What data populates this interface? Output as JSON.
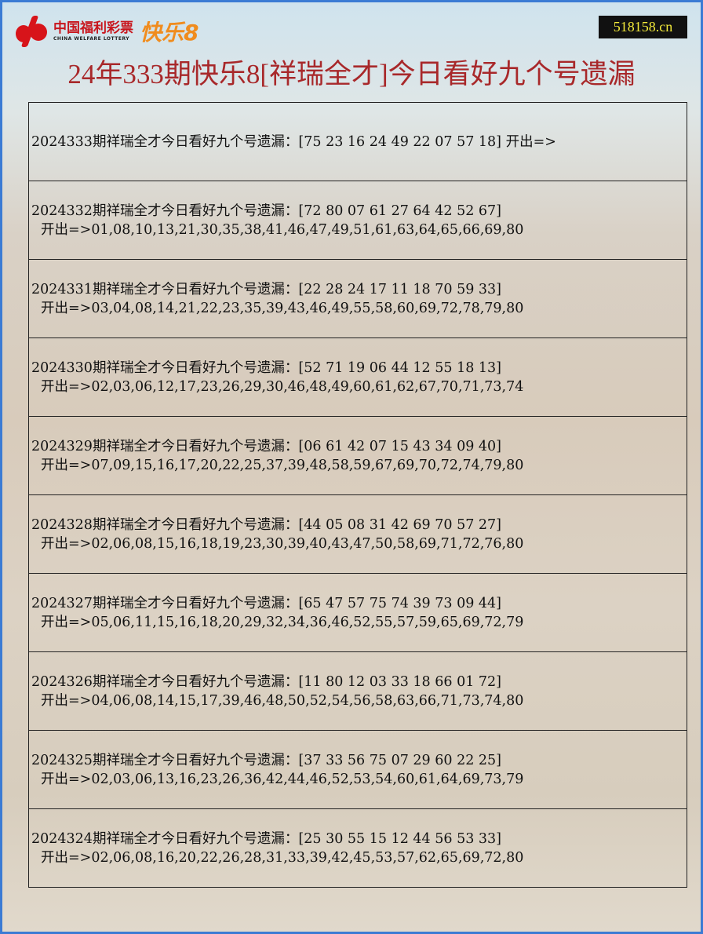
{
  "header": {
    "logo_cn": "中国福利彩票",
    "logo_en": "CHINA WELFARE LOTTERY",
    "logo_game": "快乐8",
    "site": "518158.cn",
    "title": "24年333期快乐8[祥瑞全才]今日看好九个号遗漏"
  },
  "colors": {
    "title": "#a8282a",
    "frame": "#3b7bd4",
    "site_bg": "#111111",
    "site_text": "#f3ea3a"
  },
  "rows": [
    {
      "line1": "2024333期祥瑞全才今日看好九个号遗漏：[75 23 16 24 49 22 07 57 18] 开出=>",
      "line2": ""
    },
    {
      "line1": "2024332期祥瑞全才今日看好九个号遗漏：[72 80 07 61 27 64 42 52 67]",
      "line2": "开出=>01,08,10,13,21,30,35,38,41,46,47,49,51,61,63,64,65,66,69,80"
    },
    {
      "line1": "2024331期祥瑞全才今日看好九个号遗漏：[22 28 24 17 11 18 70 59 33]",
      "line2": "开出=>03,04,08,14,21,22,23,35,39,43,46,49,55,58,60,69,72,78,79,80"
    },
    {
      "line1": "2024330期祥瑞全才今日看好九个号遗漏：[52 71 19 06 44 12 55 18 13]",
      "line2": "开出=>02,03,06,12,17,23,26,29,30,46,48,49,60,61,62,67,70,71,73,74"
    },
    {
      "line1": "2024329期祥瑞全才今日看好九个号遗漏：[06 61 42 07 15 43 34 09 40]",
      "line2": "开出=>07,09,15,16,17,20,22,25,37,39,48,58,59,67,69,70,72,74,79,80"
    },
    {
      "line1": "2024328期祥瑞全才今日看好九个号遗漏：[44 05 08 31 42 69 70 57 27]",
      "line2": "开出=>02,06,08,15,16,18,19,23,30,39,40,43,47,50,58,69,71,72,76,80"
    },
    {
      "line1": "2024327期祥瑞全才今日看好九个号遗漏：[65 47 57 75 74 39 73 09 44]",
      "line2": "开出=>05,06,11,15,16,18,20,29,32,34,36,46,52,55,57,59,65,69,72,79"
    },
    {
      "line1": "2024326期祥瑞全才今日看好九个号遗漏：[11 80 12 03 33 18 66 01 72]",
      "line2": "开出=>04,06,08,14,15,17,39,46,48,50,52,54,56,58,63,66,71,73,74,80"
    },
    {
      "line1": "2024325期祥瑞全才今日看好九个号遗漏：[37 33 56 75 07 29 60 22 25]",
      "line2": "开出=>02,03,06,13,16,23,26,36,42,44,46,52,53,54,60,61,64,69,73,79"
    },
    {
      "line1": "2024324期祥瑞全才今日看好九个号遗漏：[25 30 55 15 12 44 56 53 33]",
      "line2": "开出=>02,06,08,16,20,22,26,28,31,33,39,42,45,53,57,62,65,69,72,80"
    }
  ]
}
